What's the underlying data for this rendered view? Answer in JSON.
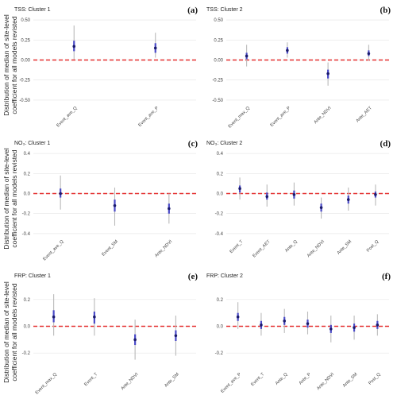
{
  "figure": {
    "ylabel_line1": "Distribution of  median of site-level",
    "ylabel_line2": "coefficient for all models revisted"
  },
  "chart_data": [
    {
      "type": "scatter",
      "title": "TSS: Cluster 1",
      "letter": "(a)",
      "ylim": [
        -0.55,
        0.55
      ],
      "yticks": [
        -0.5,
        -0.25,
        0.0,
        0.25,
        0.5
      ],
      "ytick_labels": [
        "-0.50",
        "-0.25",
        "0.00",
        "0.25",
        "0.50"
      ],
      "grid": true,
      "categories": [
        "Event_ave_Q",
        "Event_ave_P"
      ],
      "points": [
        {
          "median": 0.17,
          "low": 0.01,
          "high": 0.43,
          "iqr_low": 0.11,
          "iqr_high": 0.24
        },
        {
          "median": 0.15,
          "low": 0.03,
          "high": 0.34,
          "iqr_low": 0.09,
          "iqr_high": 0.21
        }
      ]
    },
    {
      "type": "scatter",
      "title": "TSS: Cluster 2",
      "letter": "(b)",
      "ylim": [
        -0.55,
        0.55
      ],
      "yticks": [
        -0.5,
        -0.25,
        0.0,
        0.25,
        0.5
      ],
      "ytick_labels": [
        "-0.50",
        "-0.25",
        "0.00",
        "0.25",
        "0.50"
      ],
      "grid": true,
      "categories": [
        "Event_max_Q",
        "Event_ave_P",
        "Ante_NDVI",
        "Ante_AET"
      ],
      "points": [
        {
          "median": 0.05,
          "low": -0.08,
          "high": 0.19,
          "iqr_low": 0.01,
          "iqr_high": 0.09
        },
        {
          "median": 0.12,
          "low": 0.03,
          "high": 0.22,
          "iqr_low": 0.08,
          "iqr_high": 0.16
        },
        {
          "median": -0.17,
          "low": -0.32,
          "high": -0.03,
          "iqr_low": -0.23,
          "iqr_high": -0.12
        },
        {
          "median": 0.08,
          "low": -0.01,
          "high": 0.19,
          "iqr_low": 0.05,
          "iqr_high": 0.12
        }
      ]
    },
    {
      "type": "scatter",
      "title": "NO₃: Cluster 1",
      "letter": "(c)",
      "ylim": [
        -0.44,
        0.44
      ],
      "yticks": [
        -0.4,
        -0.2,
        0.0,
        0.2,
        0.4
      ],
      "ytick_labels": [
        "-0.4",
        "-0.2",
        "0.0",
        "0.2",
        "0.4"
      ],
      "grid": true,
      "categories": [
        "Event_ave_Q",
        "Event_SM",
        "Ante_NDVI"
      ],
      "points": [
        {
          "median": 0.0,
          "low": -0.16,
          "high": 0.18,
          "iqr_low": -0.04,
          "iqr_high": 0.05
        },
        {
          "median": -0.12,
          "low": -0.32,
          "high": 0.06,
          "iqr_low": -0.18,
          "iqr_high": -0.06
        },
        {
          "median": -0.15,
          "low": -0.3,
          "high": 0.0,
          "iqr_low": -0.2,
          "iqr_high": -0.1
        }
      ]
    },
    {
      "type": "scatter",
      "title": "NO₃: Cluster 2",
      "letter": "(d)",
      "ylim": [
        -0.44,
        0.44
      ],
      "yticks": [
        -0.4,
        -0.2,
        0.0,
        0.2,
        0.4
      ],
      "ytick_labels": [
        "-0.4",
        "-0.2",
        "0.0",
        "0.2",
        "0.4"
      ],
      "grid": true,
      "categories": [
        "Event_T",
        "Event_AET",
        "Ante_Q",
        "Ante_NDVI",
        "Ante_SM",
        "Post_Q"
      ],
      "points": [
        {
          "median": 0.05,
          "low": -0.06,
          "high": 0.16,
          "iqr_low": 0.01,
          "iqr_high": 0.08
        },
        {
          "median": -0.03,
          "low": -0.13,
          "high": 0.09,
          "iqr_low": -0.06,
          "iqr_high": 0.01
        },
        {
          "median": -0.01,
          "low": -0.12,
          "high": 0.11,
          "iqr_low": -0.05,
          "iqr_high": 0.03
        },
        {
          "median": -0.14,
          "low": -0.25,
          "high": -0.04,
          "iqr_low": -0.18,
          "iqr_high": -0.1
        },
        {
          "median": -0.06,
          "low": -0.17,
          "high": 0.06,
          "iqr_low": -0.1,
          "iqr_high": -0.02
        },
        {
          "median": -0.01,
          "low": -0.12,
          "high": 0.09,
          "iqr_low": -0.04,
          "iqr_high": 0.02
        }
      ]
    },
    {
      "type": "scatter",
      "title": "FRP: Cluster 1",
      "letter": "(e)",
      "ylim": [
        -0.33,
        0.33
      ],
      "yticks": [
        -0.2,
        0.0,
        0.2
      ],
      "ytick_labels": [
        "-0.2",
        "0.0",
        "0.2"
      ],
      "grid": true,
      "categories": [
        "Event_max_Q",
        "Event_T",
        "Ante_NDVI",
        "Ante_SM"
      ],
      "points": [
        {
          "median": 0.07,
          "low": -0.07,
          "high": 0.24,
          "iqr_low": 0.03,
          "iqr_high": 0.12
        },
        {
          "median": 0.07,
          "low": -0.07,
          "high": 0.21,
          "iqr_low": 0.02,
          "iqr_high": 0.11
        },
        {
          "median": -0.1,
          "low": -0.25,
          "high": 0.05,
          "iqr_low": -0.14,
          "iqr_high": -0.06
        },
        {
          "median": -0.07,
          "low": -0.22,
          "high": 0.08,
          "iqr_low": -0.11,
          "iqr_high": -0.03
        }
      ]
    },
    {
      "type": "scatter",
      "title": "FRP: Cluster 2",
      "letter": "(f)",
      "ylim": [
        -0.33,
        0.33
      ],
      "yticks": [
        -0.2,
        0.0,
        0.2
      ],
      "ytick_labels": [
        "-0.2",
        "0.0",
        "0.2"
      ],
      "grid": true,
      "categories": [
        "Event_ave_P",
        "Event_T",
        "Ante_Q",
        "Ante_P",
        "Ante_NDVI",
        "Ante_SM",
        "Post_Q"
      ],
      "points": [
        {
          "median": 0.07,
          "low": -0.02,
          "high": 0.18,
          "iqr_low": 0.04,
          "iqr_high": 0.1
        },
        {
          "median": 0.01,
          "low": -0.07,
          "high": 0.1,
          "iqr_low": -0.02,
          "iqr_high": 0.04
        },
        {
          "median": 0.04,
          "low": -0.05,
          "high": 0.13,
          "iqr_low": 0.01,
          "iqr_high": 0.07
        },
        {
          "median": 0.02,
          "low": -0.06,
          "high": 0.11,
          "iqr_low": -0.01,
          "iqr_high": 0.05
        },
        {
          "median": -0.02,
          "low": -0.12,
          "high": 0.08,
          "iqr_low": -0.05,
          "iqr_high": 0.01
        },
        {
          "median": -0.01,
          "low": -0.1,
          "high": 0.08,
          "iqr_low": -0.04,
          "iqr_high": 0.02
        },
        {
          "median": 0.01,
          "low": -0.07,
          "high": 0.09,
          "iqr_low": -0.02,
          "iqr_high": 0.04
        }
      ]
    }
  ]
}
